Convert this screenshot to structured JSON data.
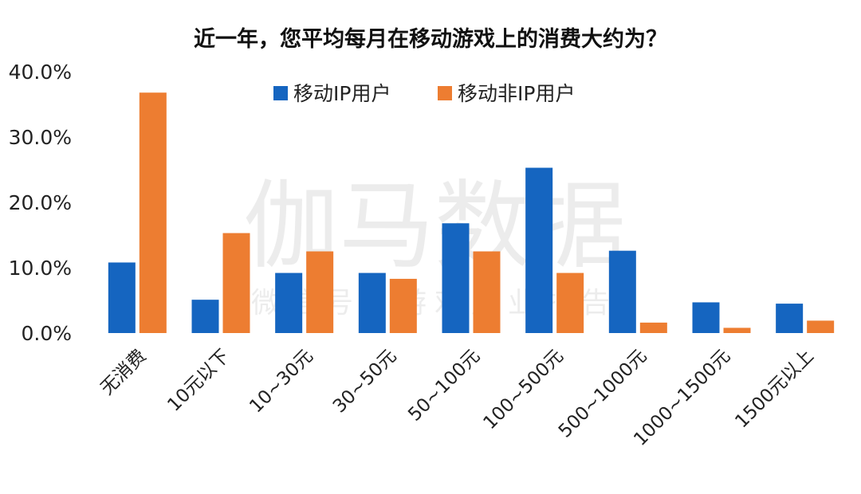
{
  "watermark": {
    "main": "伽马数据",
    "sub": "微信号：游戏产业报告"
  },
  "chart_data": {
    "type": "bar",
    "title": "近一年，您平均每月在移动游戏上的消费大约为？",
    "xlabel": "",
    "ylabel": "",
    "ylim": [
      0,
      40
    ],
    "yticks": [
      "0.0%",
      "10.0%",
      "20.0%",
      "30.0%",
      "40.0%"
    ],
    "grid": false,
    "legend_position": "top-center",
    "categories": [
      "无消费",
      "10元以下",
      "10~30元",
      "30~50元",
      "50~100元",
      "100~500元",
      "500~1000元",
      "1000~1500元",
      "1500元以上"
    ],
    "series": [
      {
        "name": "移动IP用户",
        "color": "#1565C0",
        "values": [
          10.8,
          5.1,
          9.2,
          9.2,
          16.8,
          25.3,
          12.6,
          4.7,
          4.5
        ]
      },
      {
        "name": "移动非IP用户",
        "color": "#ED7D31",
        "values": [
          36.8,
          15.3,
          12.5,
          8.3,
          12.5,
          9.2,
          1.6,
          0.8,
          1.9
        ]
      }
    ]
  }
}
